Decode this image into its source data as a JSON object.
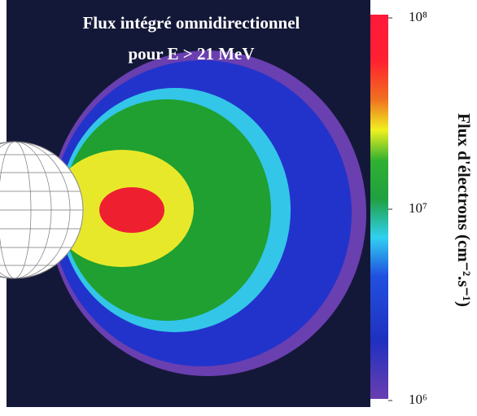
{
  "chart_data": {
    "type": "image",
    "title": [
      "Flux intégré omnidirectionnel",
      "pour E > 21 MeV"
    ],
    "colorbar_label": "Flux d'électrons (cm⁻².s⁻¹)",
    "log_scale": true,
    "clim": [
      1000000,
      100000000
    ],
    "cticks": [
      {
        "value": 1000000,
        "label": "10⁶"
      },
      {
        "value": 10000000,
        "label": "10⁷"
      },
      {
        "value": 100000000,
        "label": "10⁸"
      }
    ]
  }
}
